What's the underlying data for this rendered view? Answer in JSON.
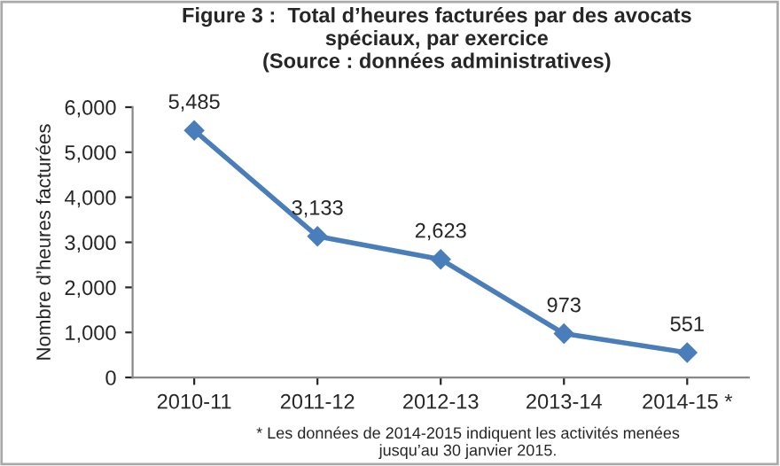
{
  "chart_data": {
    "type": "line",
    "title": "Figure 3 :  Total d’heures facturées par des avocats\nspéciaux, par exercice\n(Source : données administratives)",
    "ylabel": "Nombre d’heures facturées",
    "categories": [
      "2010-11",
      "2011-12",
      "2012-13",
      "2013-14",
      "2014-15 *"
    ],
    "series": [
      {
        "color": "#4a7ebb",
        "values": [
          5485,
          3133,
          2623,
          973,
          551
        ]
      }
    ],
    "value_labels": [
      "5,485",
      "3,133",
      "2,623",
      "973",
      "551"
    ],
    "ylim": [
      0,
      6000
    ],
    "yticks": [
      {
        "value": 0,
        "label": "0"
      },
      {
        "value": 1000,
        "label": "1,000"
      },
      {
        "value": 2000,
        "label": "2,000"
      },
      {
        "value": 3000,
        "label": "3,000"
      },
      {
        "value": 4000,
        "label": "4,000"
      },
      {
        "value": 5000,
        "label": "5,000"
      },
      {
        "value": 6000,
        "label": "6,000"
      }
    ],
    "marker": "diamond",
    "line_style": "solid",
    "annotations": [
      "* Les données de 2014-2015 indiquent les activités menées\njusqu’au 30 janvier 2015."
    ]
  }
}
